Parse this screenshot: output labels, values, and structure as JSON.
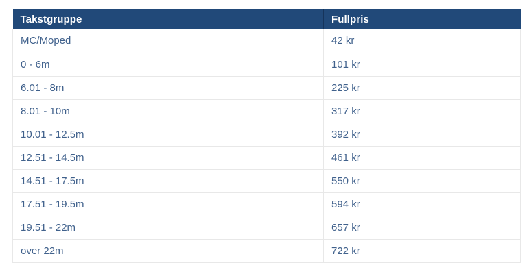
{
  "colors": {
    "header_bg": "#214979",
    "header_text": "#ffffff",
    "header_divider": "#16345b",
    "body_text": "#40618c",
    "border": "#e8e8e8",
    "row_bg": "#ffffff",
    "page_bg": "#ffffff"
  },
  "table": {
    "columns": [
      {
        "label": "Takstgruppe"
      },
      {
        "label": "Fullpris"
      }
    ],
    "rows": [
      {
        "takstgruppe": "MC/Moped",
        "fullpris": "42 kr"
      },
      {
        "takstgruppe": "0 - 6m",
        "fullpris": "101 kr"
      },
      {
        "takstgruppe": "6.01 - 8m",
        "fullpris": "225 kr"
      },
      {
        "takstgruppe": "8.01 - 10m",
        "fullpris": "317 kr"
      },
      {
        "takstgruppe": "10.01 - 12.5m",
        "fullpris": "392 kr"
      },
      {
        "takstgruppe": "12.51 - 14.5m",
        "fullpris": "461 kr"
      },
      {
        "takstgruppe": "14.51 - 17.5m",
        "fullpris": "550 kr"
      },
      {
        "takstgruppe": "17.51 - 19.5m",
        "fullpris": "594 kr"
      },
      {
        "takstgruppe": "19.51 - 22m",
        "fullpris": "657 kr"
      },
      {
        "takstgruppe": "over 22m",
        "fullpris": "722 kr"
      }
    ]
  },
  "chart_data": {
    "type": "table",
    "columns": [
      "Takstgruppe",
      "Fullpris"
    ],
    "rows": [
      [
        "MC/Moped",
        "42 kr"
      ],
      [
        "0 - 6m",
        "101 kr"
      ],
      [
        "6.01 - 8m",
        "225 kr"
      ],
      [
        "8.01 - 10m",
        "317 kr"
      ],
      [
        "10.01 - 12.5m",
        "392 kr"
      ],
      [
        "12.51 - 14.5m",
        "461 kr"
      ],
      [
        "14.51 - 17.5m",
        "550 kr"
      ],
      [
        "17.51 - 19.5m",
        "594 kr"
      ],
      [
        "19.51 - 22m",
        "657 kr"
      ],
      [
        "over 22m",
        "722 kr"
      ]
    ]
  }
}
